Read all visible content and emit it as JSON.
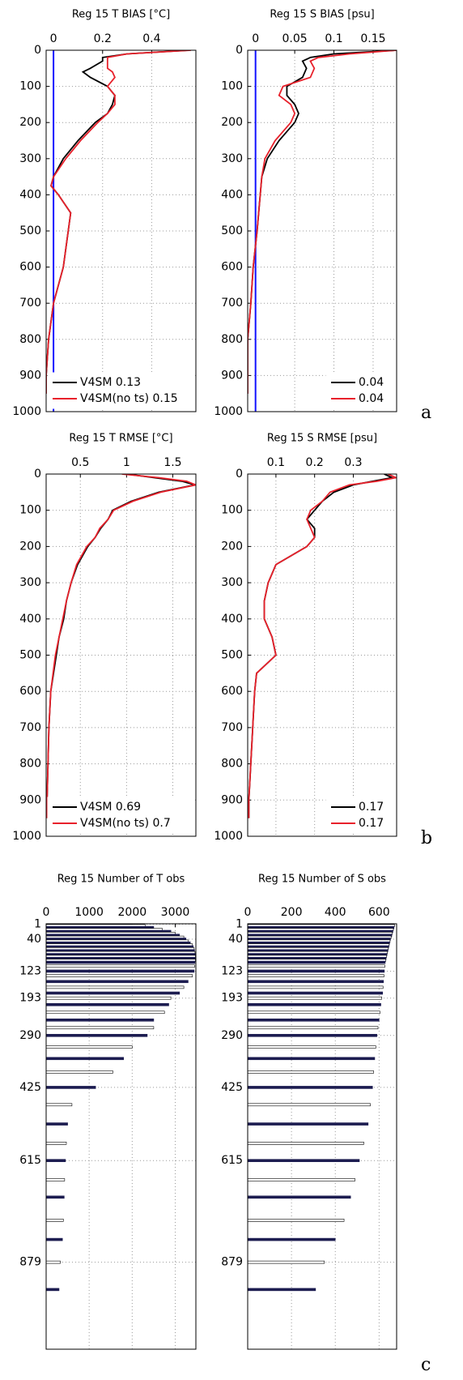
{
  "chart_data": [
    {
      "type": "profile",
      "title": "Reg 15 T BIAS [°C]",
      "y_inverted": true,
      "y": [
        0,
        10,
        20,
        30,
        50,
        60,
        75,
        100,
        125,
        150,
        175,
        200,
        250,
        300,
        350,
        375,
        400,
        450,
        500,
        600,
        700,
        800,
        900,
        950
      ],
      "series": [
        {
          "name": "V4SM 0.13",
          "color": "#000000",
          "values": [
            0.55,
            0.3,
            0.2,
            0.2,
            0.15,
            0.12,
            0.15,
            0.22,
            0.25,
            0.24,
            0.22,
            0.17,
            0.1,
            0.04,
            0.0,
            -0.01,
            0.02,
            0.07,
            0.06,
            0.04,
            0.0,
            -0.02,
            -0.03,
            -0.03
          ]
        },
        {
          "name": "V4SM(no ts) 0.15",
          "color": "#e8212b",
          "values": [
            0.56,
            0.3,
            0.22,
            0.22,
            0.22,
            0.24,
            0.25,
            0.22,
            0.25,
            0.25,
            0.22,
            0.18,
            0.11,
            0.05,
            0.0,
            -0.01,
            0.02,
            0.07,
            0.06,
            0.04,
            0.0,
            -0.02,
            -0.03,
            -0.03
          ]
        }
      ],
      "reference_line": {
        "value": 0,
        "color": "#1010ff"
      },
      "xlim": [
        -0.03,
        0.58
      ],
      "xticks": [
        0,
        0.2,
        0.4
      ],
      "ylim": [
        0,
        1000
      ],
      "yticks": [
        0,
        100,
        200,
        300,
        400,
        500,
        600,
        700,
        800,
        900,
        1000
      ],
      "grid": true,
      "legend": "lower right"
    },
    {
      "type": "profile",
      "title": "Reg 15 S BIAS [psu]",
      "y_inverted": true,
      "y": [
        0,
        10,
        20,
        30,
        50,
        75,
        100,
        125,
        150,
        175,
        200,
        250,
        300,
        350,
        400,
        500,
        600,
        700,
        800,
        900,
        950
      ],
      "series": [
        {
          "name": "0.04",
          "color": "#000000",
          "values": [
            0.18,
            0.1,
            0.07,
            0.06,
            0.065,
            0.06,
            0.04,
            0.04,
            0.05,
            0.055,
            0.05,
            0.03,
            0.015,
            0.008,
            0.006,
            0.002,
            -0.003,
            -0.006,
            -0.01,
            -0.01,
            -0.01
          ]
        },
        {
          "name": "0.04",
          "color": "#e8212b",
          "values": [
            0.18,
            0.12,
            0.08,
            0.07,
            0.075,
            0.07,
            0.035,
            0.03,
            0.045,
            0.05,
            0.045,
            0.025,
            0.012,
            0.008,
            0.006,
            0.002,
            -0.003,
            -0.006,
            -0.01,
            -0.01,
            -0.01
          ]
        }
      ],
      "reference_line": {
        "value": 0,
        "color": "#1010ff"
      },
      "xlim": [
        -0.01,
        0.18
      ],
      "xticks": [
        0,
        0.05,
        0.1,
        0.15
      ],
      "ylim": [
        0,
        1000
      ],
      "yticks": [
        0,
        100,
        200,
        300,
        400,
        500,
        600,
        700,
        800,
        900,
        1000
      ],
      "grid": true,
      "legend": "lower right"
    },
    {
      "type": "profile",
      "title": "Reg 15 T RMSE [°C]",
      "y_inverted": true,
      "y": [
        0,
        10,
        20,
        30,
        50,
        75,
        100,
        125,
        150,
        175,
        200,
        250,
        300,
        350,
        400,
        450,
        500,
        600,
        700,
        800,
        900,
        950
      ],
      "series": [
        {
          "name": "V4SM 0.69",
          "color": "#000000",
          "values": [
            1.0,
            1.3,
            1.6,
            1.74,
            1.35,
            1.05,
            0.85,
            0.8,
            0.72,
            0.66,
            0.58,
            0.47,
            0.4,
            0.35,
            0.32,
            0.27,
            0.24,
            0.18,
            0.16,
            0.15,
            0.14,
            0.14
          ]
        },
        {
          "name": "V4SM(no ts) 0.7",
          "color": "#e8212b",
          "values": [
            0.95,
            1.35,
            1.65,
            1.75,
            1.37,
            1.07,
            0.86,
            0.8,
            0.71,
            0.66,
            0.57,
            0.46,
            0.4,
            0.35,
            0.31,
            0.27,
            0.23,
            0.18,
            0.16,
            0.15,
            0.14,
            0.14
          ]
        }
      ],
      "xlim": [
        0.13,
        1.75
      ],
      "xticks": [
        0.5,
        1,
        1.5
      ],
      "ylim": [
        0,
        1000
      ],
      "yticks": [
        0,
        100,
        200,
        300,
        400,
        500,
        600,
        700,
        800,
        900,
        1000
      ],
      "grid": true,
      "legend": "lower right"
    },
    {
      "type": "profile",
      "title": "Reg 15 S RMSE [psu]",
      "y_inverted": true,
      "y": [
        0,
        10,
        20,
        30,
        50,
        75,
        100,
        125,
        150,
        175,
        200,
        250,
        300,
        350,
        400,
        450,
        500,
        550,
        600,
        700,
        800,
        900,
        950
      ],
      "series": [
        {
          "name": "0.17",
          "color": "#000000",
          "values": [
            0.38,
            0.4,
            0.35,
            0.3,
            0.25,
            0.22,
            0.2,
            0.18,
            0.2,
            0.2,
            0.18,
            0.1,
            0.08,
            0.07,
            0.07,
            0.09,
            0.1,
            0.05,
            0.045,
            0.04,
            0.035,
            0.03,
            0.03
          ]
        },
        {
          "name": "0.17",
          "color": "#e8212b",
          "values": [
            0.39,
            0.41,
            0.36,
            0.29,
            0.24,
            0.22,
            0.19,
            0.18,
            0.19,
            0.2,
            0.18,
            0.1,
            0.08,
            0.07,
            0.07,
            0.09,
            0.1,
            0.05,
            0.045,
            0.04,
            0.035,
            0.03,
            0.03
          ]
        }
      ],
      "xlim": [
        0.027,
        0.412
      ],
      "xticks": [
        0.1,
        0.2,
        0.3
      ],
      "ylim": [
        0,
        1000
      ],
      "yticks": [
        0,
        100,
        200,
        300,
        400,
        500,
        600,
        700,
        800,
        900,
        1000
      ],
      "grid": true,
      "legend": "lower right"
    },
    {
      "type": "barh",
      "title": "Reg 15 Number of T obs",
      "y_inverted": true,
      "y": [
        1,
        5,
        10,
        15,
        20,
        25,
        30,
        35,
        40,
        45,
        50,
        55,
        60,
        65,
        70,
        75,
        80,
        85,
        90,
        95,
        100,
        110,
        123,
        135,
        150,
        165,
        180,
        193,
        210,
        230,
        250,
        270,
        290,
        320,
        350,
        385,
        425,
        470,
        520,
        570,
        615,
        665,
        710,
        770,
        820,
        879,
        950
      ],
      "values": [
        2000,
        2300,
        2500,
        2700,
        2900,
        3000,
        3100,
        3200,
        3250,
        3300,
        3350,
        3400,
        3420,
        3440,
        3450,
        3460,
        3470,
        3470,
        3470,
        3470,
        3460,
        3450,
        3440,
        3400,
        3300,
        3200,
        3100,
        2900,
        2850,
        2750,
        2500,
        2500,
        2350,
        2000,
        1800,
        1550,
        1150,
        600,
        500,
        470,
        450,
        430,
        420,
        400,
        380,
        330,
        300
      ],
      "color": "#1c1c50",
      "alt_color": "#ffffff",
      "xlim": [
        0,
        3480
      ],
      "xticks": [
        0,
        1000,
        2000,
        3000
      ],
      "ylim": [
        0,
        1105
      ],
      "yticks": [
        1,
        40,
        123,
        193,
        290,
        425,
        615,
        879
      ],
      "grid": true
    },
    {
      "type": "barh",
      "title": "Reg 15 Number of S obs",
      "y_inverted": true,
      "y": [
        1,
        5,
        10,
        15,
        20,
        25,
        30,
        35,
        40,
        45,
        50,
        55,
        60,
        65,
        70,
        75,
        80,
        85,
        90,
        95,
        100,
        110,
        123,
        135,
        150,
        165,
        180,
        193,
        210,
        230,
        250,
        270,
        290,
        320,
        350,
        385,
        425,
        470,
        520,
        570,
        615,
        665,
        710,
        770,
        820,
        879,
        950
      ],
      "values": [
        670,
        670,
        668,
        665,
        663,
        660,
        658,
        655,
        652,
        650,
        648,
        646,
        644,
        642,
        640,
        638,
        636,
        634,
        632,
        630,
        628,
        626,
        624,
        622,
        620,
        618,
        616,
        612,
        608,
        604,
        600,
        595,
        590,
        585,
        580,
        575,
        570,
        560,
        550,
        530,
        510,
        490,
        470,
        440,
        400,
        350,
        310
      ],
      "color": "#1c1c50",
      "alt_color": "#ffffff",
      "xlim": [
        0,
        680
      ],
      "xticks": [
        0,
        200,
        400,
        600
      ],
      "ylim": [
        0,
        1105
      ],
      "yticks": [
        1,
        40,
        123,
        193,
        290,
        425,
        615,
        879
      ],
      "grid": true
    }
  ],
  "panel_labels": [
    "a",
    "b",
    "c"
  ]
}
